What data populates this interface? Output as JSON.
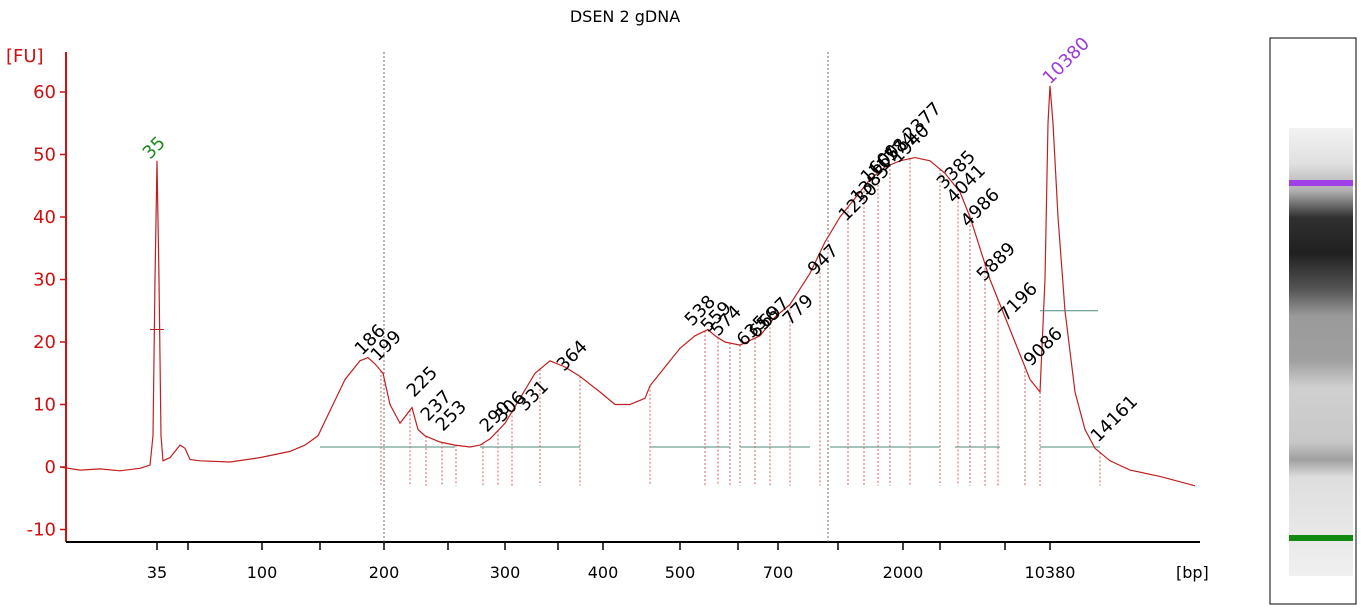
{
  "chart_data": {
    "type": "line",
    "title": "DSEN 2 gDNA",
    "ylabel": "[FU]",
    "xlabel": "[bp]",
    "ylim": [
      -12,
      68
    ],
    "yticks": [
      -10,
      0,
      10,
      20,
      30,
      40,
      50,
      60
    ],
    "x_tick_labels": [
      "35",
      "100",
      "200",
      "300",
      "400",
      "500",
      "700",
      "2000",
      "10380"
    ],
    "marker_peaks": [
      {
        "label": "35",
        "color": "#1f8a1f",
        "height": 49
      },
      {
        "label": "10380",
        "color": "#9a3ddb",
        "height": 61
      }
    ],
    "peak_labels": [
      "186",
      "199",
      "225",
      "237",
      "253",
      "290",
      "306",
      "331",
      "364",
      "538",
      "559",
      "574",
      "635",
      "656",
      "697",
      "779",
      "947",
      "1230",
      "1385",
      "1600",
      "1658",
      "1774",
      "1940",
      "2377",
      "3385",
      "4041",
      "4986",
      "5889",
      "7196",
      "9086",
      "14161"
    ],
    "trace": [
      [
        60,
        0
      ],
      [
        80,
        -0.5
      ],
      [
        100,
        -0.3
      ],
      [
        120,
        -0.6
      ],
      [
        140,
        -0.2
      ],
      [
        150,
        0.3
      ],
      [
        153,
        5
      ],
      [
        155,
        30
      ],
      [
        157,
        49
      ],
      [
        159,
        30
      ],
      [
        161,
        5
      ],
      [
        163,
        1
      ],
      [
        170,
        1.5
      ],
      [
        180,
        3.5
      ],
      [
        185,
        3
      ],
      [
        190,
        1.2
      ],
      [
        200,
        1
      ],
      [
        230,
        0.8
      ],
      [
        260,
        1.5
      ],
      [
        290,
        2.5
      ],
      [
        305,
        3.5
      ],
      [
        318,
        5
      ],
      [
        330,
        9
      ],
      [
        345,
        14
      ],
      [
        360,
        17
      ],
      [
        368,
        17.5
      ],
      [
        375,
        16.5
      ],
      [
        383,
        15
      ],
      [
        390,
        10
      ],
      [
        400,
        7
      ],
      [
        412,
        9.5
      ],
      [
        418,
        6
      ],
      [
        425,
        5
      ],
      [
        440,
        4
      ],
      [
        455,
        3.5
      ],
      [
        470,
        3.2
      ],
      [
        480,
        3.5
      ],
      [
        490,
        4.5
      ],
      [
        505,
        7
      ],
      [
        520,
        11
      ],
      [
        535,
        15
      ],
      [
        550,
        17
      ],
      [
        565,
        16
      ],
      [
        580,
        14.5
      ],
      [
        600,
        12
      ],
      [
        615,
        10
      ],
      [
        630,
        10
      ],
      [
        645,
        11
      ],
      [
        650,
        13
      ],
      [
        665,
        16
      ],
      [
        680,
        19
      ],
      [
        695,
        21
      ],
      [
        708,
        22
      ],
      [
        715,
        21
      ],
      [
        725,
        20
      ],
      [
        740,
        19.5
      ],
      [
        760,
        21
      ],
      [
        775,
        24
      ],
      [
        790,
        26
      ],
      [
        810,
        31
      ],
      [
        825,
        36
      ],
      [
        840,
        40
      ],
      [
        855,
        43
      ],
      [
        870,
        46
      ],
      [
        885,
        48
      ],
      [
        900,
        49
      ],
      [
        915,
        49.5
      ],
      [
        930,
        49
      ],
      [
        945,
        47
      ],
      [
        960,
        44
      ],
      [
        970,
        40
      ],
      [
        980,
        35
      ],
      [
        990,
        30
      ],
      [
        1000,
        26
      ],
      [
        1010,
        22
      ],
      [
        1020,
        18
      ],
      [
        1030,
        14
      ],
      [
        1040,
        12
      ],
      [
        1045,
        30
      ],
      [
        1048,
        55
      ],
      [
        1050,
        61
      ],
      [
        1053,
        55
      ],
      [
        1058,
        40
      ],
      [
        1065,
        25
      ],
      [
        1075,
        12
      ],
      [
        1085,
        6
      ],
      [
        1095,
        3
      ],
      [
        1110,
        1
      ],
      [
        1130,
        -0.5
      ],
      [
        1160,
        -1.5
      ],
      [
        1195,
        -3
      ]
    ]
  },
  "gel": {
    "upper_marker_color": "#a040e8",
    "lower_marker_color": "#108a10"
  }
}
